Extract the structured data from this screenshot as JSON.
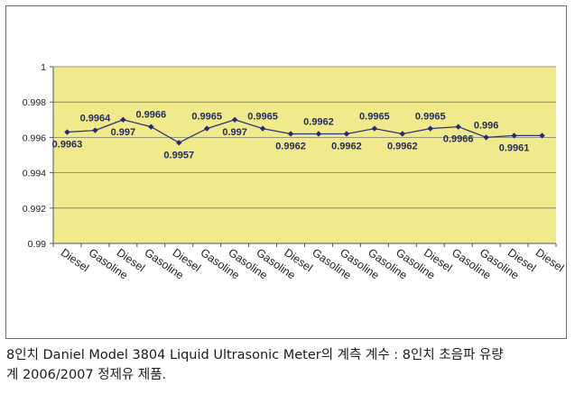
{
  "chart_data": {
    "type": "line",
    "title": "",
    "xlabel": "",
    "ylabel": "",
    "categories": [
      "Diesel",
      "Gasoline",
      "Diesel",
      "Gasoline",
      "Diesel",
      "Gasoline",
      "Gasoline",
      "Gasoline",
      "Diesel",
      "Gasoline",
      "Gasoline",
      "Gasoline",
      "Gasoline",
      "Diesel",
      "Gasoline",
      "Gasoline",
      "Diesel",
      "Diesel"
    ],
    "values": [
      0.9963,
      0.9964,
      0.997,
      0.9966,
      0.9957,
      0.9965,
      0.997,
      0.9965,
      0.9962,
      0.9962,
      0.9962,
      0.9965,
      0.9962,
      0.9965,
      0.9966,
      0.996,
      0.9961,
      0.9961
    ],
    "data_labels": [
      "0.9963",
      "0.9964",
      "0.997",
      "0.9966",
      "0.9957",
      "0.9965",
      "0.997",
      "0.9965",
      "0.9962",
      "0.9962",
      "0.9962",
      "0.9965",
      "0.9962",
      "0.9965",
      "0.9966",
      "0.996",
      "0.9961",
      "0.9961"
    ],
    "data_label_pos": [
      "below",
      "above",
      "below",
      "above",
      "below",
      "above",
      "below",
      "above",
      "below",
      "above",
      "below",
      "above",
      "below",
      "above",
      "below",
      "above",
      "below",
      "none"
    ],
    "ylim": [
      0.99,
      1
    ],
    "yticks": [
      0.99,
      0.992,
      0.994,
      0.996,
      0.998,
      1
    ],
    "ytick_labels": [
      "0.99",
      "0.992",
      "0.994",
      "0.996",
      "0.998",
      "1"
    ],
    "grid": true,
    "legend": "none",
    "colors": {
      "plot_bg": "#f1ea8c",
      "line": "#2d3474",
      "marker": "#232b6e",
      "grid": "#7a7a6a"
    }
  },
  "caption": {
    "line1": "8인치 Daniel Model 3804 Liquid Ultrasonic Meter의 계측 계수 : 8인치 초음파 유량",
    "line2": "계 2006/2007 정제유 제품."
  }
}
